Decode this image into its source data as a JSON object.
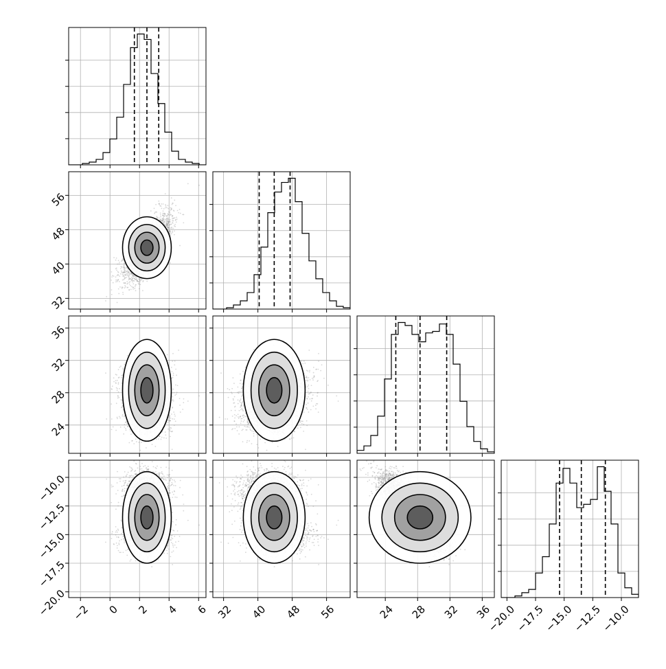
{
  "chart_data": {
    "type": "corner",
    "n_params": 4,
    "grid": true,
    "params": [
      {
        "range": [
          -2.8,
          6.5
        ],
        "ticks": [
          -2,
          0,
          2,
          4,
          6
        ],
        "tick_labels": [
          "−2",
          "0",
          "2",
          "4",
          "6"
        ],
        "quantiles": [
          1.65,
          2.5,
          3.3
        ],
        "hist_edges_start": -2.8,
        "hist_bin_width": 0.465,
        "hist_counts": [
          0,
          0,
          1,
          2,
          4,
          9,
          19,
          35,
          59,
          86,
          96,
          92,
          67,
          45,
          24,
          10,
          4,
          2,
          1,
          0
        ]
      },
      {
        "range": [
          29.5,
          61.5
        ],
        "ticks": [
          32,
          40,
          48,
          56
        ],
        "tick_labels": [
          "32",
          "40",
          "48",
          "56"
        ],
        "quantiles": [
          40.3,
          43.8,
          47.5
        ],
        "hist_edges_start": 29.5,
        "hist_bin_width": 1.6,
        "hist_counts": [
          0,
          0,
          1,
          3,
          6,
          12,
          25,
          45,
          70,
          85,
          92,
          95,
          78,
          55,
          35,
          22,
          12,
          6,
          2,
          1
        ]
      },
      {
        "range": [
          20.5,
          37.5
        ],
        "ticks": [
          24,
          28,
          32,
          36
        ],
        "tick_labels": [
          "24",
          "28",
          "32",
          "36"
        ],
        "quantiles": [
          25.3,
          28.3,
          31.6
        ],
        "hist_edges_start": 20.5,
        "hist_bin_width": 0.85,
        "hist_counts": [
          2,
          5,
          12,
          25,
          50,
          80,
          88,
          86,
          80,
          75,
          81,
          82,
          87,
          80,
          60,
          35,
          18,
          8,
          3,
          1
        ]
      },
      {
        "range": [
          -20.5,
          -8.5
        ],
        "ticks": [
          -20.0,
          -17.5,
          -15.0,
          -12.5,
          -10.0
        ],
        "tick_labels": [
          "−20.0",
          "−17.5",
          "−15.0",
          "−12.5",
          "−10.0"
        ],
        "quantiles": [
          -15.4,
          -13.5,
          -11.4
        ],
        "hist_edges_start": -20.5,
        "hist_bin_width": 0.6,
        "hist_counts": [
          0,
          0,
          1,
          3,
          5,
          15,
          25,
          45,
          70,
          79,
          70,
          55,
          57,
          60,
          80,
          65,
          45,
          15,
          6,
          2
        ]
      }
    ],
    "scatter_color": "#8c8c8c",
    "contour_color": "#000000"
  }
}
